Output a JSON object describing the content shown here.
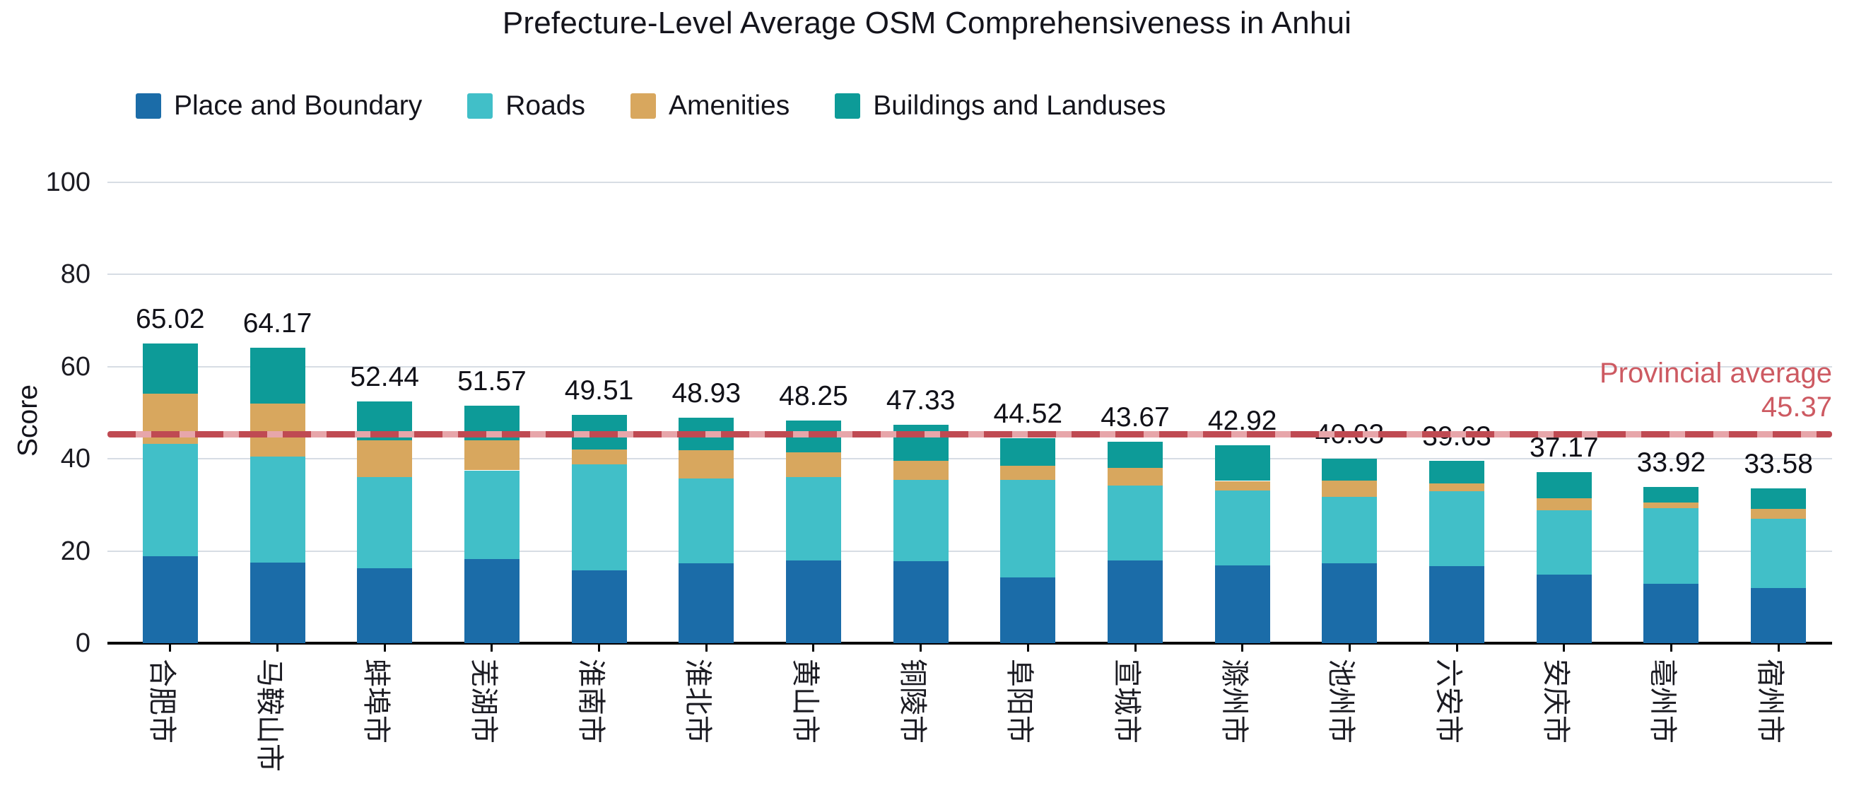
{
  "chart": {
    "title": "Prefecture-Level Average OSM Comprehensiveness in Anhui",
    "ylabel": "Score",
    "annotation": {
      "label": "Provincial average",
      "value": "45.37"
    }
  },
  "chart_data": {
    "type": "bar",
    "stacked": true,
    "title": "Prefecture-Level Average OSM Comprehensiveness in Anhui",
    "xlabel": "",
    "ylabel": "Score",
    "ylim": [
      0,
      100
    ],
    "yticks": [
      0,
      20,
      40,
      60,
      80,
      100
    ],
    "grid": true,
    "legend_position": "top-left",
    "categories": [
      "合肥市",
      "马鞍山市",
      "蚌埠市",
      "芜湖市",
      "淮南市",
      "淮北市",
      "黄山市",
      "铜陵市",
      "阜阳市",
      "宣城市",
      "滁州市",
      "池州市",
      "六安市",
      "安庆市",
      "亳州市",
      "宿州市"
    ],
    "series": [
      {
        "name": "Place and Boundary",
        "color": "#1b6ca8",
        "values": [
          18.8,
          17.5,
          16.2,
          18.3,
          15.8,
          17.4,
          18.0,
          17.8,
          14.3,
          18.0,
          16.8,
          17.3,
          16.7,
          14.9,
          12.9,
          12.0
        ]
      },
      {
        "name": "Roads",
        "color": "#41bfc8",
        "values": [
          24.4,
          23.0,
          19.8,
          19.2,
          23.0,
          18.3,
          18.0,
          17.7,
          21.2,
          16.2,
          16.4,
          14.4,
          16.3,
          13.9,
          16.4,
          15.0
        ]
      },
      {
        "name": "Amenities",
        "color": "#d8a75e",
        "values": [
          10.9,
          11.5,
          8.0,
          6.5,
          3.2,
          6.1,
          5.4,
          4.0,
          3.0,
          3.8,
          2.0,
          3.6,
          1.6,
          2.7,
          1.2,
          2.2
        ]
      },
      {
        "name": "Buildings and Landuses",
        "color": "#0d9b98",
        "values": [
          10.92,
          12.17,
          8.44,
          7.57,
          7.51,
          7.13,
          6.85,
          7.83,
          6.02,
          5.67,
          7.72,
          4.73,
          5.03,
          5.67,
          3.42,
          4.38
        ]
      }
    ],
    "totals": [
      65.02,
      64.17,
      52.44,
      51.57,
      49.51,
      48.93,
      48.25,
      47.33,
      44.52,
      43.67,
      42.92,
      40.03,
      39.63,
      37.17,
      33.92,
      33.58
    ],
    "average_line": {
      "value": 45.37,
      "label": "Provincial average",
      "color": "#bf4a52",
      "gap_color": "#e7a6aa"
    }
  }
}
